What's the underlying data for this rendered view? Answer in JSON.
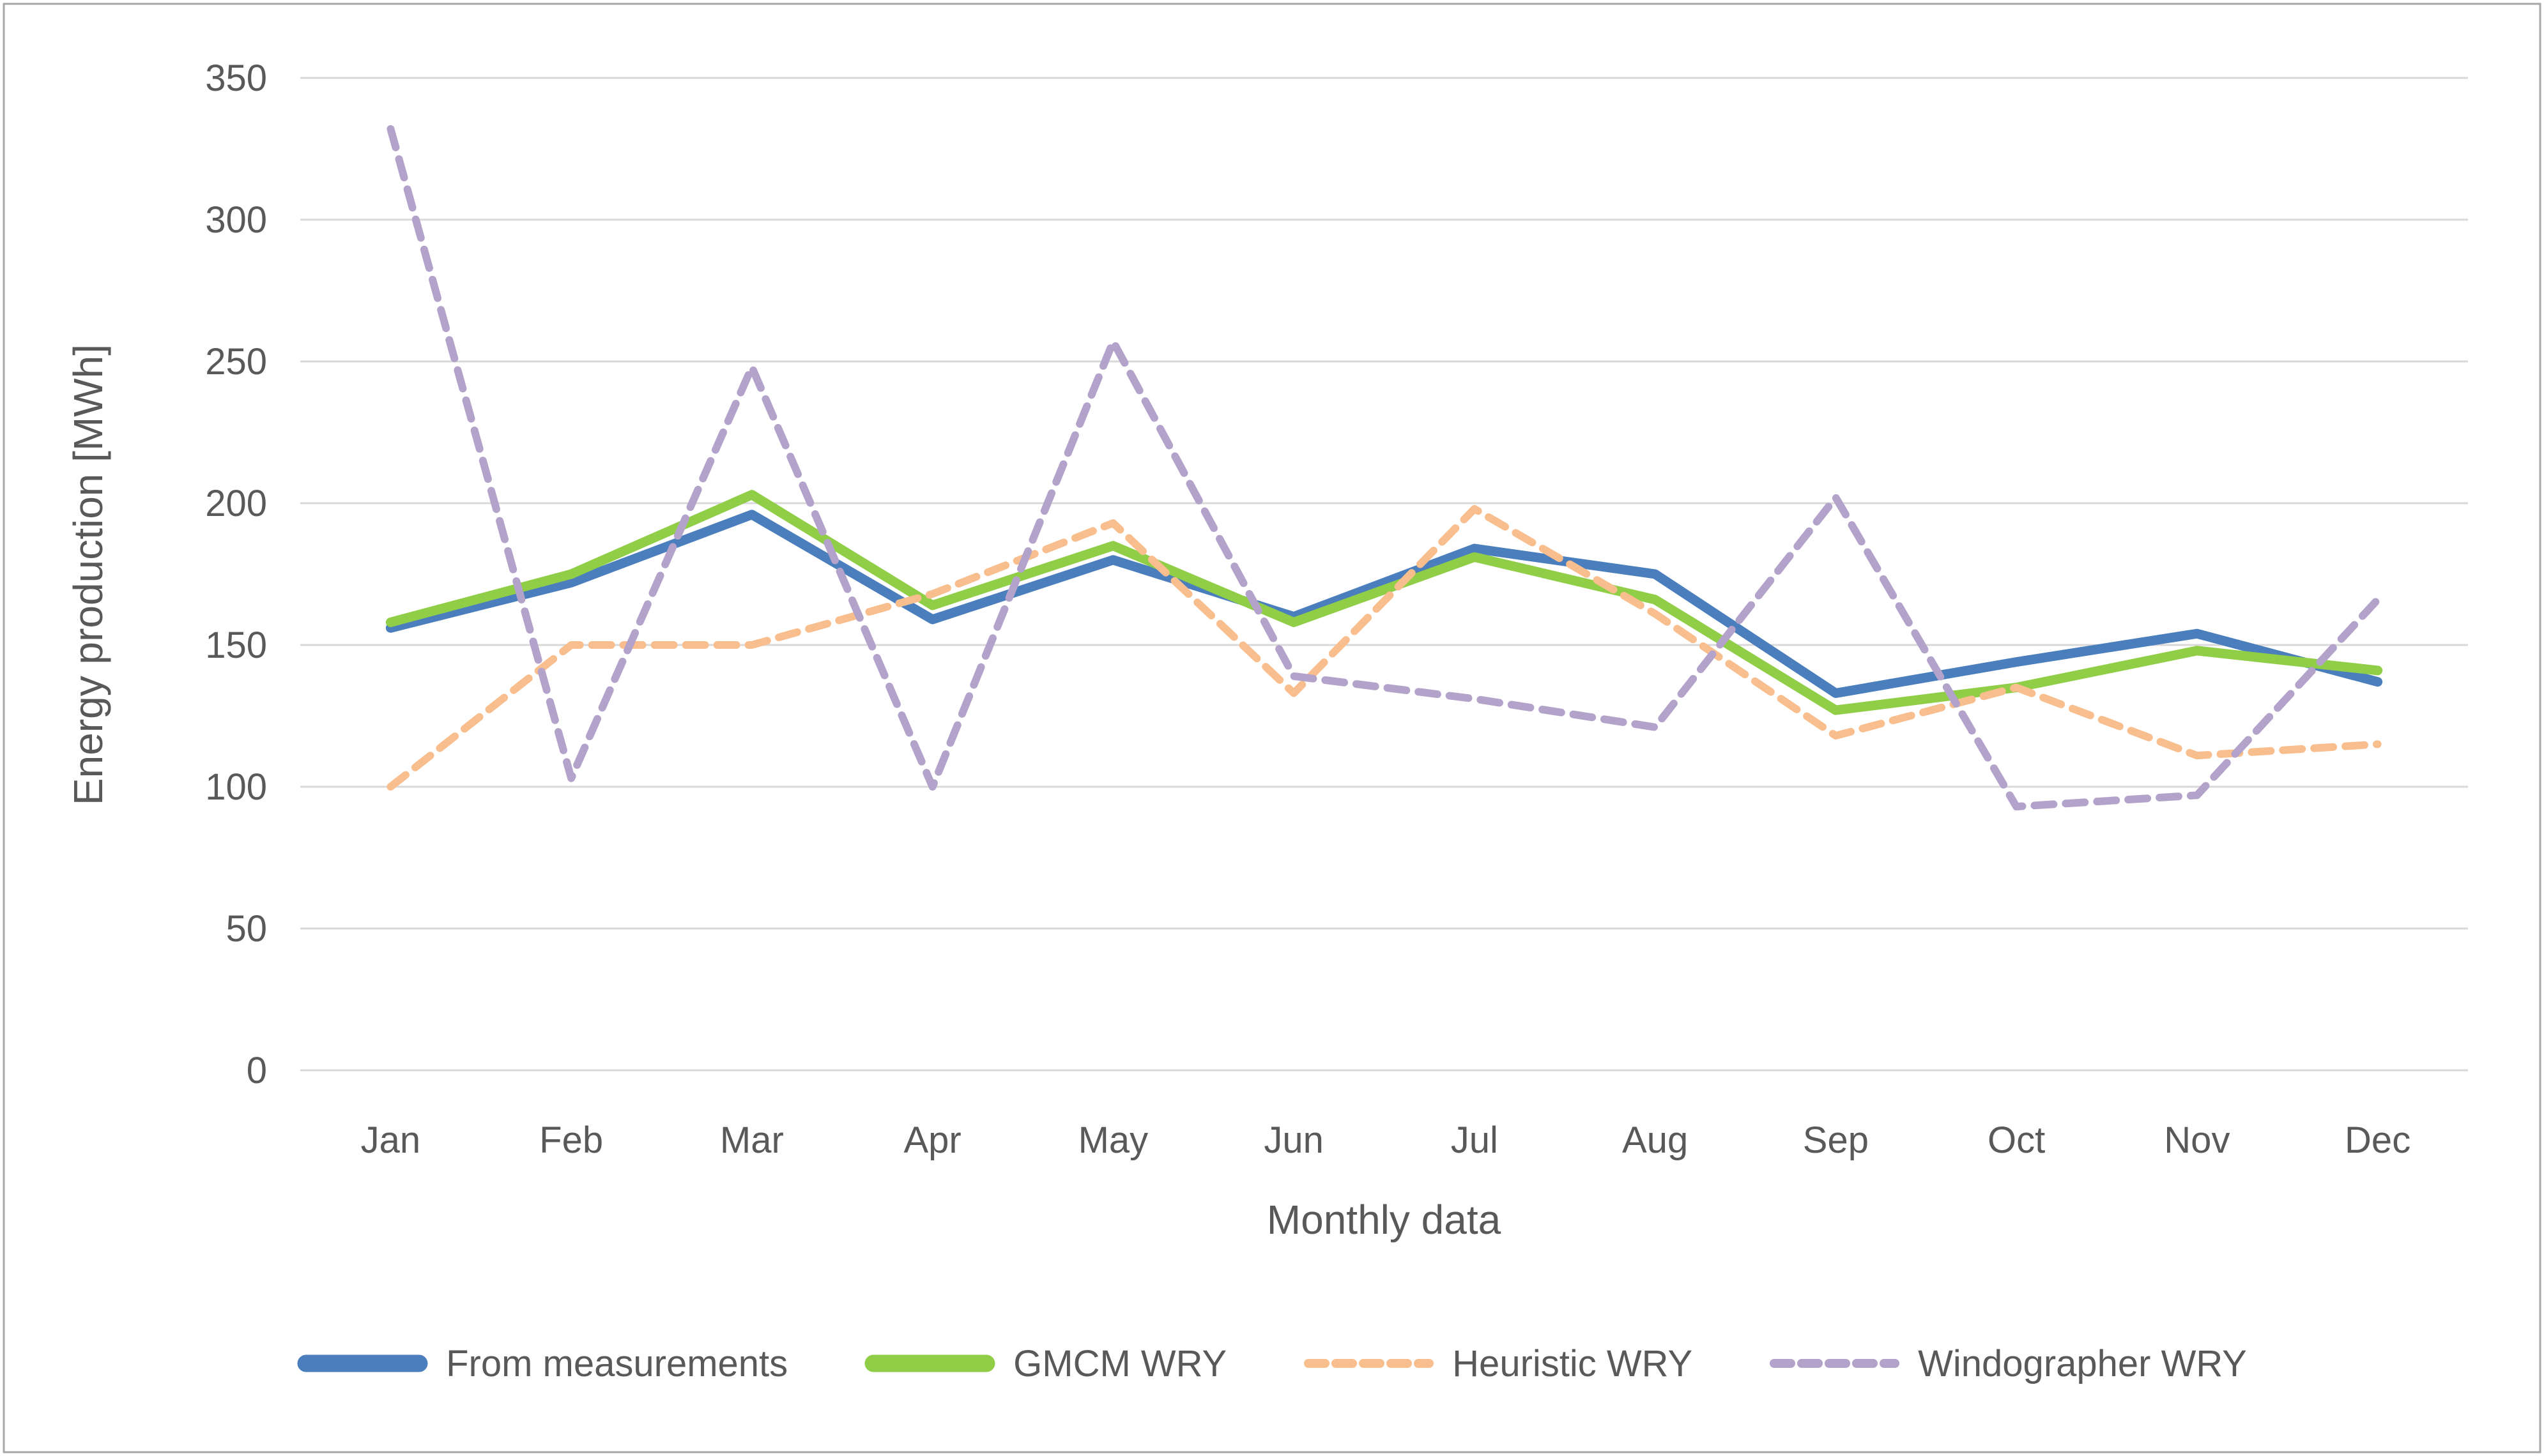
{
  "chart_data": {
    "type": "line",
    "title": "",
    "xlabel": "Monthly data",
    "ylabel": "Energy production [MWh]",
    "categories": [
      "Jan",
      "Feb",
      "Mar",
      "Apr",
      "May",
      "Jun",
      "Jul",
      "Aug",
      "Sep",
      "Oct",
      "Nov",
      "Dec"
    ],
    "ylim": [
      0,
      350
    ],
    "ytick_step": 50,
    "grid": "horizontal-only",
    "grid_color": "#D9D9D9",
    "axis_text_color": "#595959",
    "legend_position": "bottom",
    "series": [
      {
        "name": "From measurements",
        "color": "#4A7EBC",
        "style": "solid",
        "values": [
          156,
          172,
          196,
          159,
          180,
          160,
          184,
          175,
          133,
          144,
          154,
          137
        ]
      },
      {
        "name": "GMCM WRY",
        "color": "#8FCE46",
        "style": "solid",
        "values": [
          158,
          175,
          203,
          164,
          185,
          158,
          181,
          166,
          127,
          135,
          148,
          141
        ]
      },
      {
        "name": "Heuristic WRY",
        "color": "#F9BE8E",
        "style": "dashed",
        "values": [
          100,
          150,
          150,
          168,
          193,
          133,
          198,
          161,
          118,
          135,
          111,
          115
        ]
      },
      {
        "name": "Windographer WRY",
        "color": "#B3A2C9",
        "style": "dashed",
        "values": [
          332,
          103,
          248,
          100,
          257,
          139,
          131,
          121,
          202,
          93,
          97,
          166
        ]
      }
    ]
  }
}
